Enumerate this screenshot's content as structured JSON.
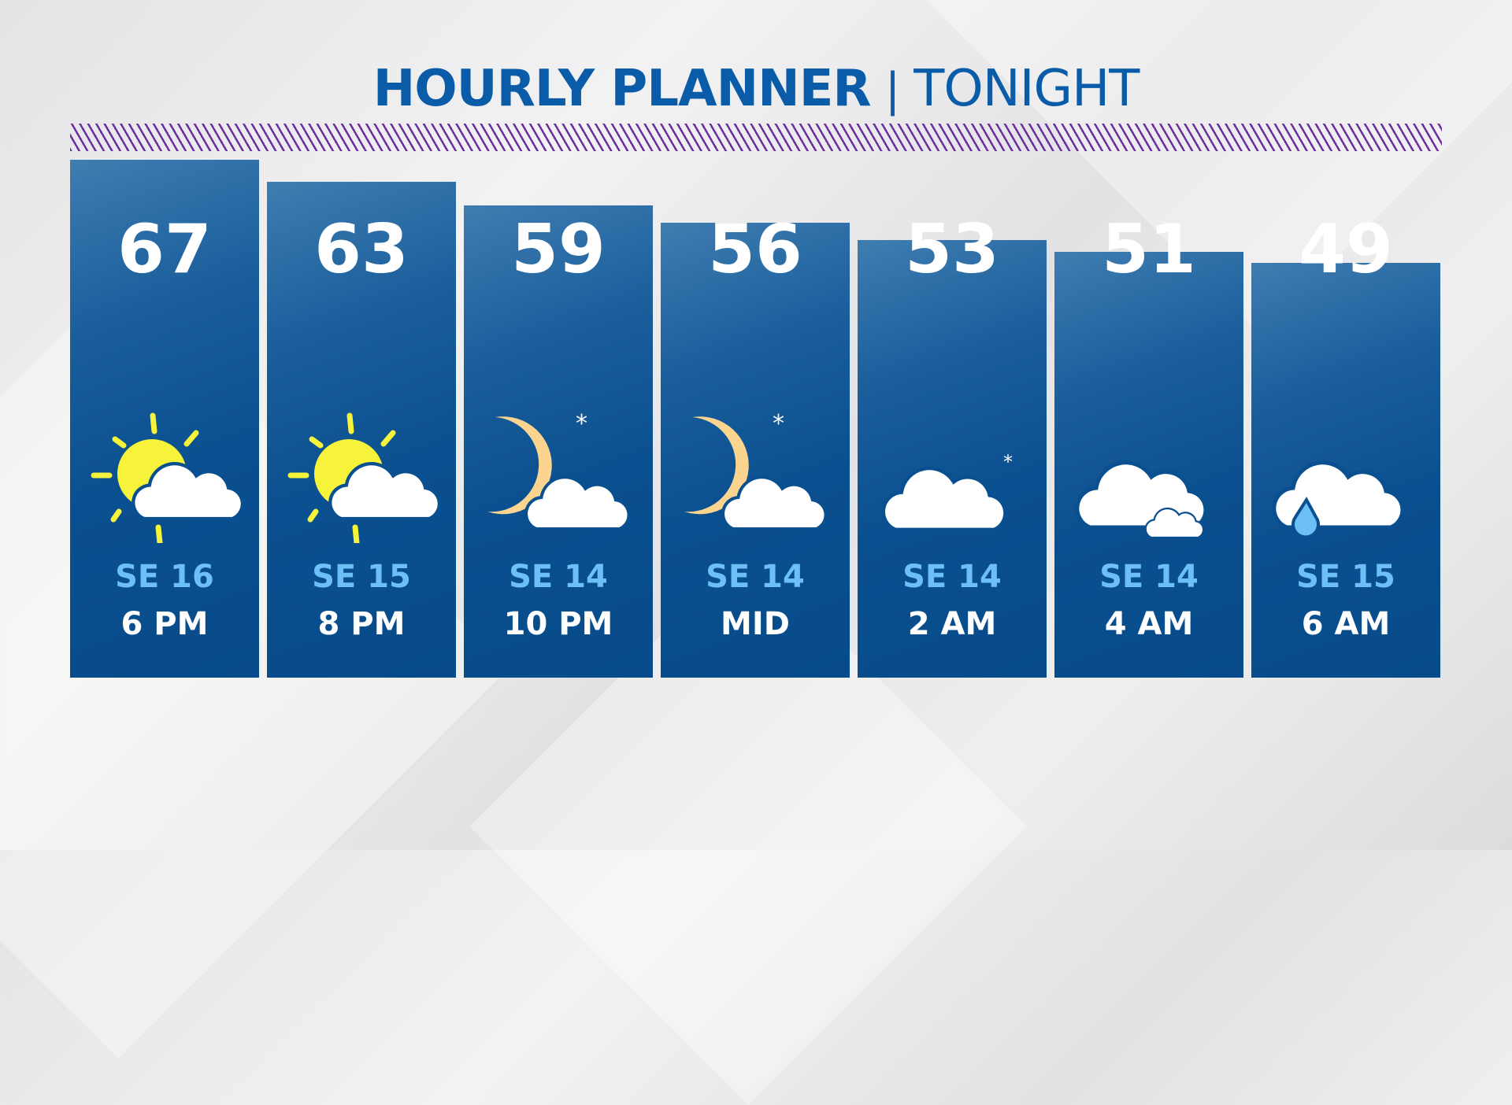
{
  "header": {
    "title_bold": "HOURLY PLANNER",
    "separator": "|",
    "title_light": "TONIGHT"
  },
  "colors": {
    "title": "#0b5ca8",
    "stripe": "#6b2fa3",
    "bar": "#0a4f8f",
    "wind": "#6cc0f5",
    "sun": "#f6f33a",
    "moon": "#fbd58f",
    "rain": "#6cc0f5"
  },
  "hours": [
    {
      "temp": "67",
      "wind": "SE 16",
      "time": "6 PM",
      "icon": "partly-sunny-icon"
    },
    {
      "temp": "63",
      "wind": "SE 15",
      "time": "8 PM",
      "icon": "partly-sunny-icon"
    },
    {
      "temp": "59",
      "wind": "SE 14",
      "time": "10 PM",
      "icon": "moon-cloud-icon"
    },
    {
      "temp": "56",
      "wind": "SE 14",
      "time": "MID",
      "icon": "moon-cloud-icon"
    },
    {
      "temp": "53",
      "wind": "SE 14",
      "time": "2 AM",
      "icon": "cloud-moon-icon"
    },
    {
      "temp": "51",
      "wind": "SE 14",
      "time": "4 AM",
      "icon": "cloudy-icon"
    },
    {
      "temp": "49",
      "wind": "SE 15",
      "time": "6 AM",
      "icon": "cloud-rain-icon"
    }
  ]
}
